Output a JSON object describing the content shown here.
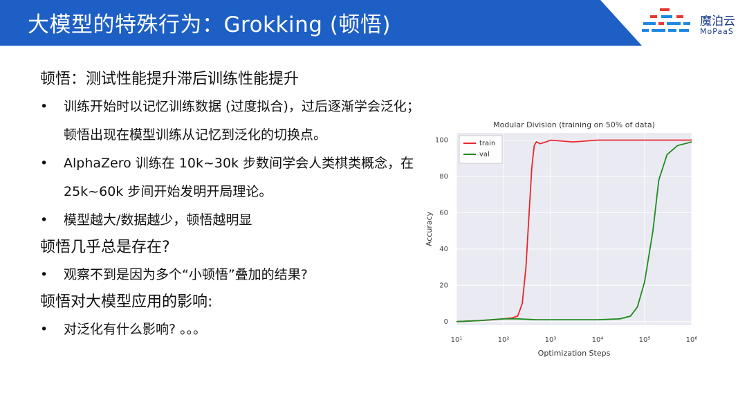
{
  "slide": {
    "title": "大模型的特殊行为：Grokking (顿悟)",
    "logo": {
      "name": "魔泊云",
      "subtitle": "MoPaaS"
    },
    "colors": {
      "header_blue": "#1d5fc4",
      "logo_red": "#e53935",
      "logo_blue": "#1e88e5"
    }
  },
  "content": {
    "heading1": "顿悟：测试性能提升滞后训练性能提升",
    "bullets1": [
      "训练开始时以记忆训练数据 (过度拟合)，过后逐渐学会泛化；顿悟出现在模型训练从记忆到泛化的切换点。",
      "AlphaZero 训练在 10k~30k 步数间学会人类棋类概念，在 25k~60k 步间开始发明开局理论。",
      "模型越大/数据越少，顿悟越明显"
    ],
    "heading2": "顿悟几乎总是存在?",
    "bullets2": [
      "观察不到是因为多个“小顿悟”叠加的结果?"
    ],
    "heading3": "顿悟对大模型应用的影响:",
    "bullets3": [
      "对泛化有什么影响? 。。。"
    ],
    "bullet_symbol": "•"
  },
  "chart_data": {
    "type": "line",
    "title": "Modular Division (training on 50% of data)",
    "xlabel": "Optimization Steps",
    "ylabel": "Accuracy",
    "xscale": "log",
    "xlim": [
      10,
      1000000
    ],
    "ylim": [
      -2,
      104
    ],
    "xticks": [
      "10¹",
      "10²",
      "10³",
      "10⁴",
      "10⁵",
      "10⁶"
    ],
    "yticks": [
      0,
      20,
      40,
      60,
      80,
      100
    ],
    "grid": true,
    "legend_position": "top-left",
    "series": [
      {
        "name": "train",
        "color": "#e8262a",
        "x": [
          10,
          30,
          60,
          100,
          150,
          200,
          250,
          300,
          350,
          400,
          450,
          500,
          600,
          800,
          1000,
          3000,
          10000,
          100000,
          1000000
        ],
        "y": [
          0,
          0.5,
          1,
          1.5,
          2,
          3,
          10,
          30,
          60,
          85,
          97,
          99,
          98,
          99,
          100,
          99,
          100,
          100,
          100
        ]
      },
      {
        "name": "val",
        "color": "#1f8a1f",
        "x": [
          10,
          30,
          100,
          200,
          500,
          1000,
          3000,
          10000,
          30000,
          50000,
          70000,
          100000,
          150000,
          200000,
          300000,
          500000,
          1000000
        ],
        "y": [
          0,
          0.5,
          1.5,
          1.5,
          1,
          1,
          1,
          1,
          1.5,
          3,
          8,
          22,
          50,
          78,
          92,
          97,
          99
        ]
      }
    ]
  }
}
